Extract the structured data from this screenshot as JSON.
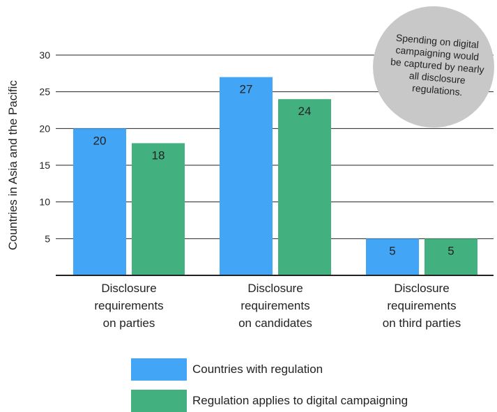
{
  "chart_data": {
    "type": "bar",
    "categories": [
      [
        "Disclosure",
        "requirements",
        "on parties"
      ],
      [
        "Disclosure",
        "requirements",
        "on candidates"
      ],
      [
        "Disclosure",
        "requirements",
        "on third parties"
      ]
    ],
    "series": [
      {
        "name": "Countries with regulation",
        "values": [
          20,
          27,
          5
        ],
        "color": "#42a5f5"
      },
      {
        "name": "Regulation applies to digital campaigning",
        "values": [
          18,
          24,
          5
        ],
        "color": "#43b080"
      }
    ],
    "ylabel": "Countries in Asia and the Pacific",
    "ylim": [
      0,
      30
    ],
    "yticks": [
      5,
      10,
      15,
      20,
      25,
      30
    ],
    "grid": true,
    "legend_position": "bottom",
    "annotation": {
      "lines": [
        "Spending on digital",
        "campaigning would",
        "be captured by nearly",
        "all disclosure",
        "regulations."
      ],
      "color": "#c8c8c8",
      "placement": "top-right"
    }
  }
}
